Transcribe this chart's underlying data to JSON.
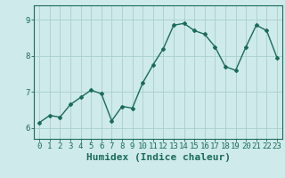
{
  "x": [
    0,
    1,
    2,
    3,
    4,
    5,
    6,
    7,
    8,
    9,
    10,
    11,
    12,
    13,
    14,
    15,
    16,
    17,
    18,
    19,
    20,
    21,
    22,
    23
  ],
  "y": [
    6.15,
    6.35,
    6.3,
    6.65,
    6.85,
    7.05,
    6.95,
    6.2,
    6.6,
    6.55,
    7.25,
    7.75,
    8.2,
    8.85,
    8.9,
    8.7,
    8.6,
    8.25,
    7.7,
    7.6,
    8.25,
    8.85,
    8.7,
    7.95
  ],
  "line_color": "#1a6b5a",
  "bg_color": "#ceeaea",
  "grid_color": "#aacece",
  "xlabel": "Humidex (Indice chaleur)",
  "xlim": [
    -0.5,
    23.5
  ],
  "ylim": [
    5.7,
    9.4
  ],
  "yticks": [
    6,
    7,
    8,
    9
  ],
  "xtick_labels": [
    "0",
    "1",
    "2",
    "3",
    "4",
    "5",
    "6",
    "7",
    "8",
    "9",
    "10",
    "11",
    "12",
    "13",
    "14",
    "15",
    "16",
    "17",
    "18",
    "19",
    "20",
    "21",
    "22",
    "23"
  ],
  "marker": "D",
  "markersize": 2.0,
  "linewidth": 1.0,
  "xlabel_fontsize": 8,
  "tick_fontsize": 6.5,
  "axis_color": "#1a6b5a"
}
